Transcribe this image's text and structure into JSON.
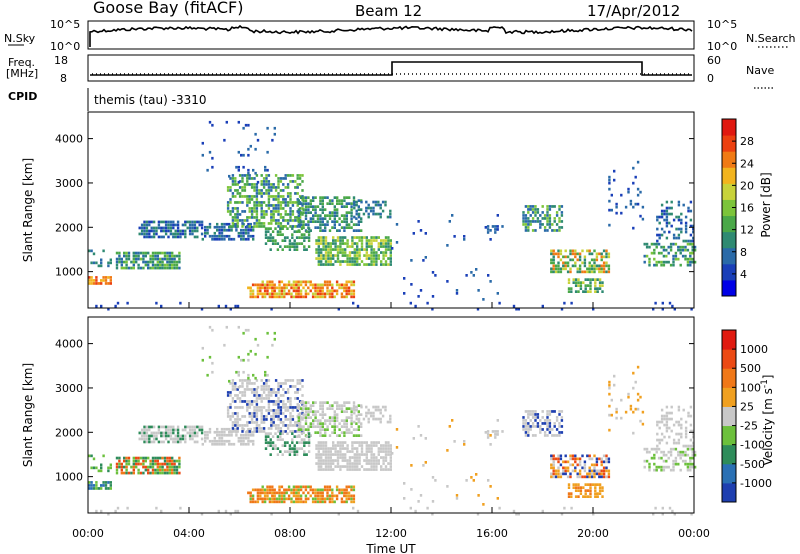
{
  "header": {
    "station": "Goose Bay (fitACF)",
    "beam": "Beam 12",
    "date": "17/Apr/2012"
  },
  "strip_panels": {
    "nsky_label": "N.Sky",
    "nsky_ticks": [
      "10^5",
      "10^0"
    ],
    "nsearch_label": "N.Search",
    "nsearch_ticks": [
      "10^5",
      "10^0"
    ],
    "freq_label_1": "Freq.",
    "freq_label_2": "[MHz]",
    "freq_ticks": [
      "18",
      "8"
    ],
    "nave_label": "Nave",
    "nave_ticks": [
      "60",
      "0"
    ],
    "cpid_label": "CPID",
    "cpid_value": "themis (tau) -3310"
  },
  "chart_data": [
    {
      "type": "heatmap",
      "name": "power",
      "ylabel": "Slant Range [km]",
      "yticks": [
        "4000",
        "3000",
        "2000",
        "1000"
      ],
      "ylim": [
        180,
        4600
      ],
      "colorbar_label": "Power [dB]",
      "colorbar_ticks": [
        "28",
        "24",
        "20",
        "16",
        "12",
        "8",
        "4"
      ],
      "colorbar_colors": [
        "#0000e6",
        "#1a3fb8",
        "#2a6aa8",
        "#2f8a72",
        "#4aa848",
        "#7cc43a",
        "#c8d23a",
        "#f2b41e",
        "#f07a14",
        "#ec4010",
        "#e01810"
      ]
    },
    {
      "type": "heatmap",
      "name": "velocity",
      "ylabel": "Slant Range [km]",
      "yticks": [
        "4000",
        "3000",
        "2000",
        "1000"
      ],
      "ylim": [
        180,
        4600
      ],
      "colorbar_label": "Velocity [m s",
      "colorbar_label_sup": "-1",
      "colorbar_label_end": "]",
      "colorbar_ticks": [
        "1000",
        "500",
        "100",
        "25",
        "-25",
        "-100",
        "-500",
        "-1000"
      ],
      "colorbar_colors": [
        "#1e3fb0",
        "#2a70b4",
        "#2e8c5a",
        "#6cc03c",
        "#c8c8c8",
        "#f0a020",
        "#f07818",
        "#ec4a14",
        "#e01a10"
      ]
    }
  ],
  "time_axis": {
    "label": "Time UT",
    "ticks": [
      "00:00",
      "04:00",
      "08:00",
      "12:00",
      "16:00",
      "20:00",
      "00:00"
    ]
  },
  "colors": {
    "ground_scatter": "#c8c8c8",
    "frame": "#000000"
  }
}
